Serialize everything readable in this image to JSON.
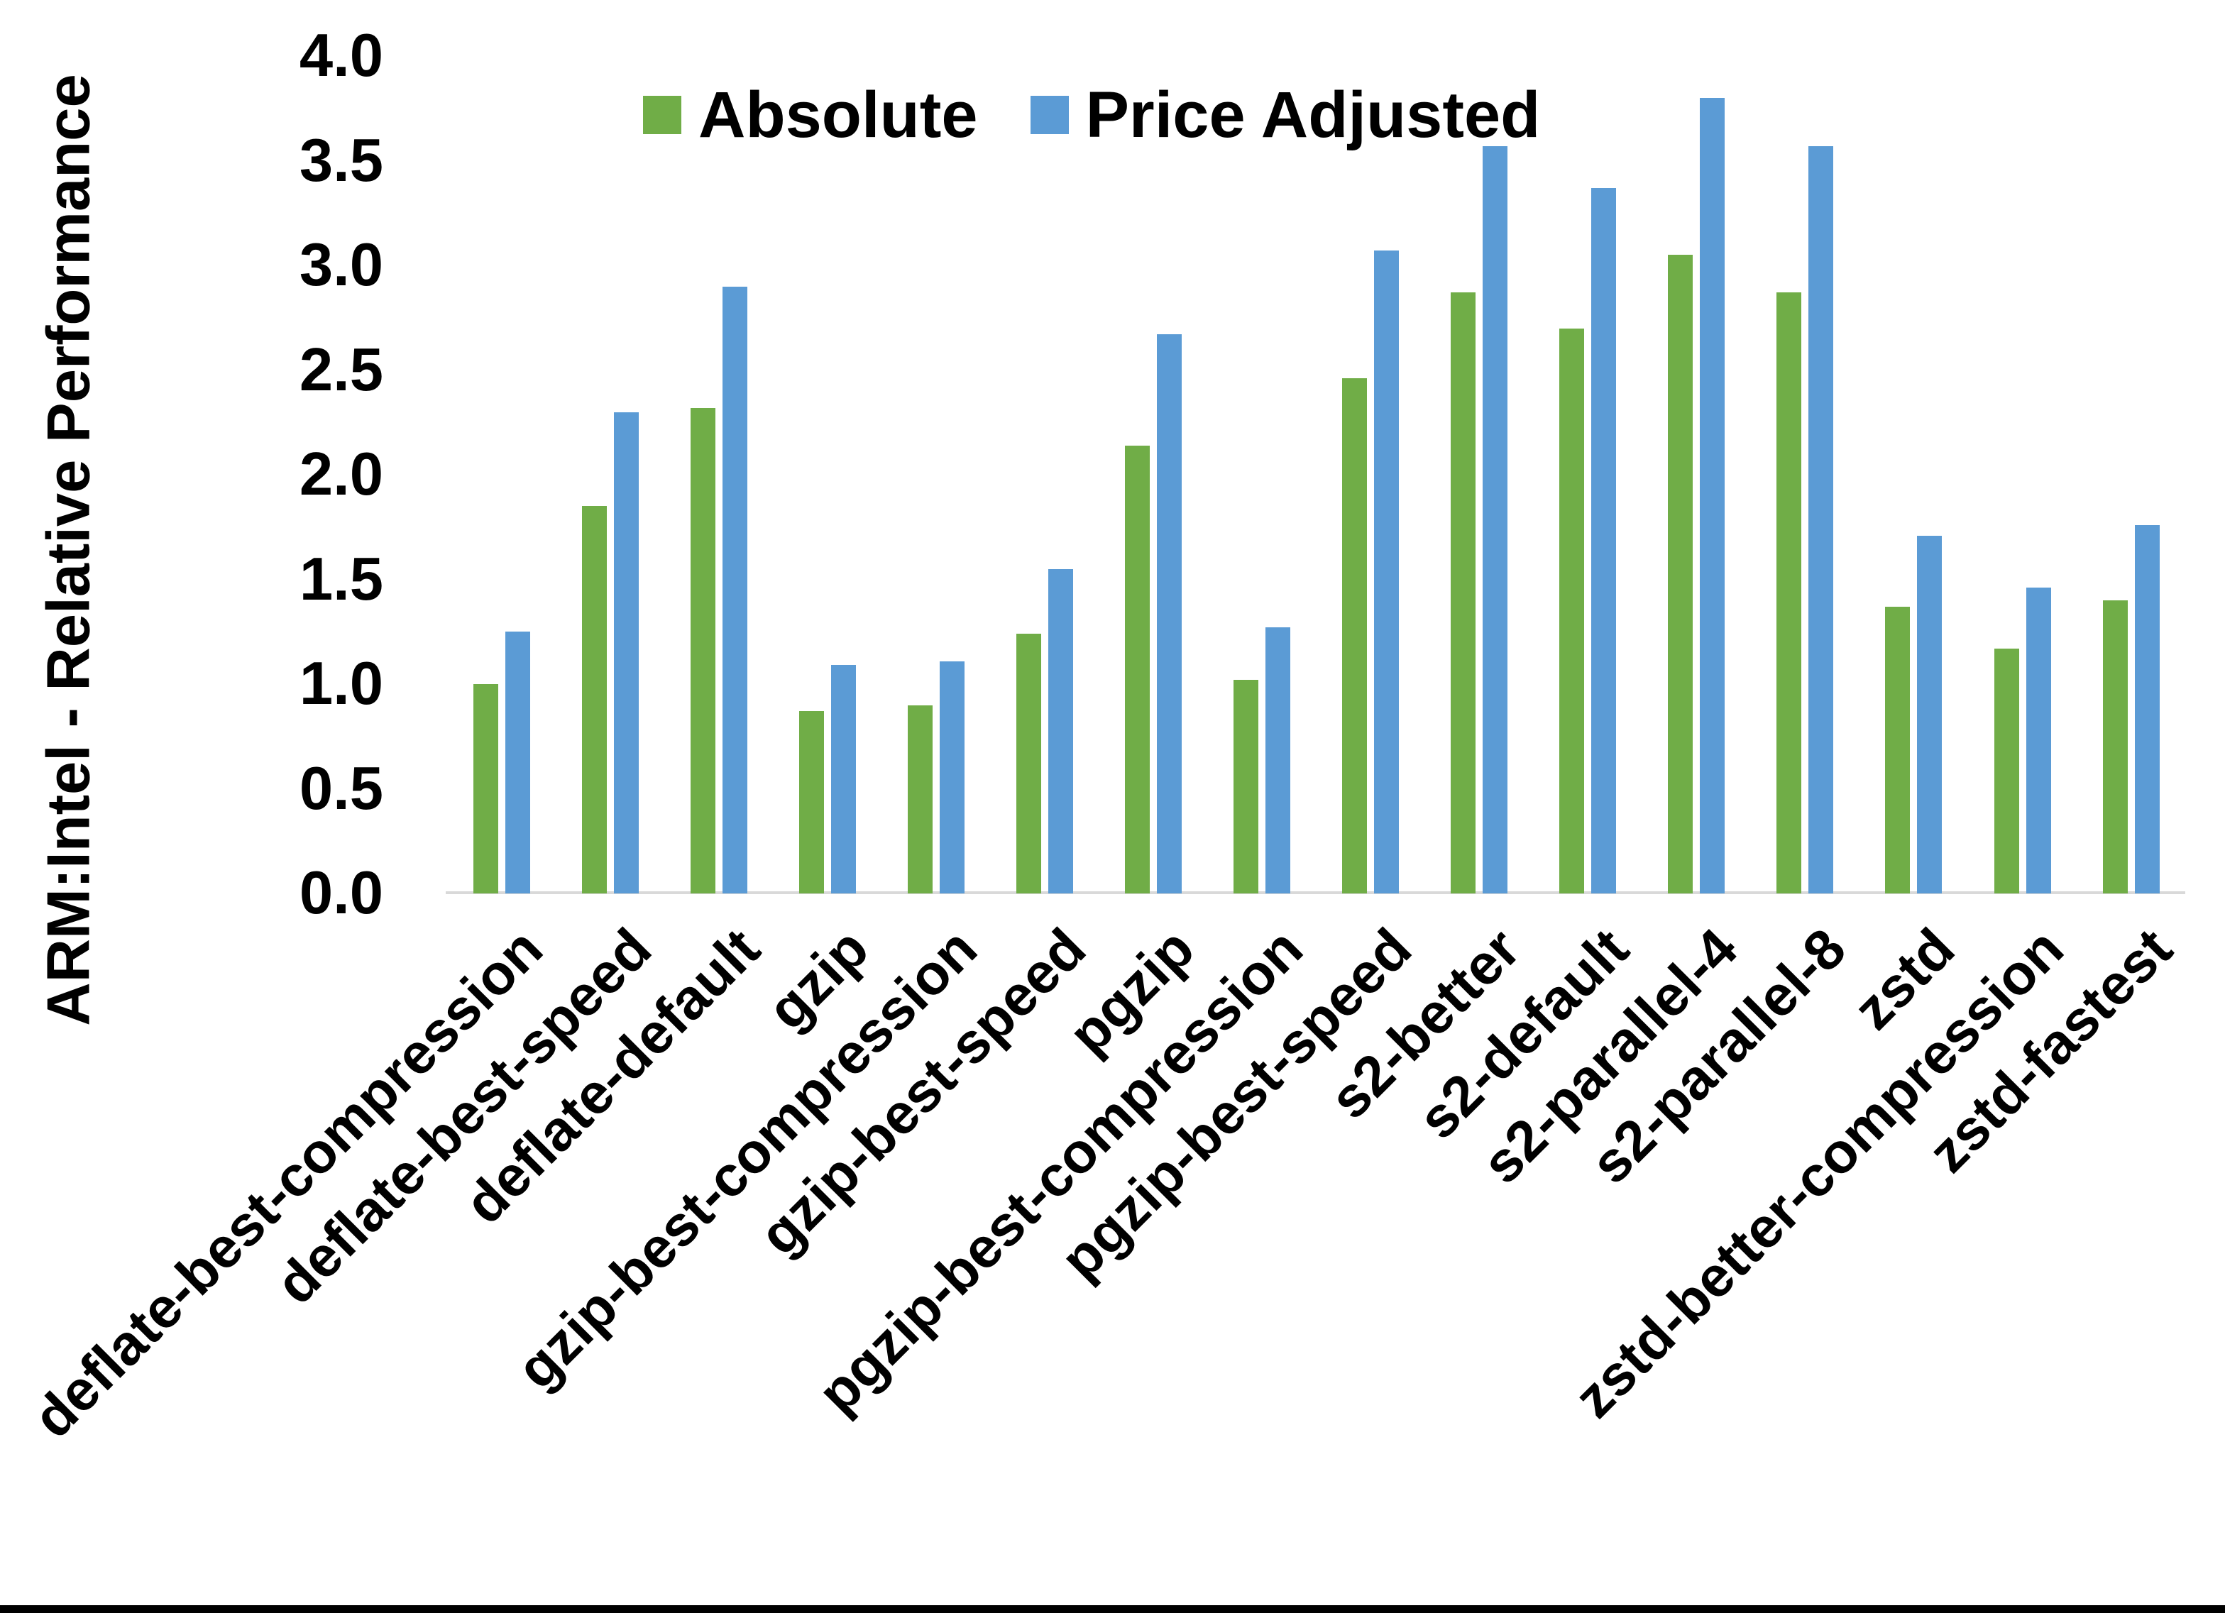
{
  "chart_data": {
    "type": "bar",
    "title": "",
    "ylabel": "ARM:Intel - Relative Performance",
    "xlabel": "",
    "ylim": [
      0.0,
      4.0
    ],
    "ytick_step": 0.5,
    "grid": false,
    "legend_position": "top-center",
    "categories": [
      "deflate-best-compression",
      "deflate-best-speed",
      "deflate-default",
      "gzip",
      "gzip-best-compression",
      "gzip-best-speed",
      "pgzip",
      "pgzip-best-compression",
      "pgzip-best-speed",
      "s2-better",
      "s2-default",
      "s2-parallel-4",
      "s2-parallel-8",
      "zstd",
      "zstd-better-compression",
      "zstd-fastest"
    ],
    "series": [
      {
        "name": "Absolute",
        "color": "#70AD47",
        "values": [
          1.0,
          1.85,
          2.32,
          0.87,
          0.9,
          1.24,
          2.14,
          1.02,
          2.46,
          2.87,
          2.7,
          3.05,
          2.87,
          1.37,
          1.17,
          1.4
        ]
      },
      {
        "name": "Price Adjusted",
        "color": "#5B9BD5",
        "values": [
          1.25,
          2.3,
          2.9,
          1.09,
          1.11,
          1.55,
          2.67,
          1.27,
          3.07,
          3.57,
          3.37,
          3.8,
          3.57,
          1.71,
          1.46,
          1.76
        ]
      }
    ],
    "colors": {
      "axis_line": "#D9D9D9",
      "text": "#000000",
      "frame_bottom": "#000000"
    }
  }
}
